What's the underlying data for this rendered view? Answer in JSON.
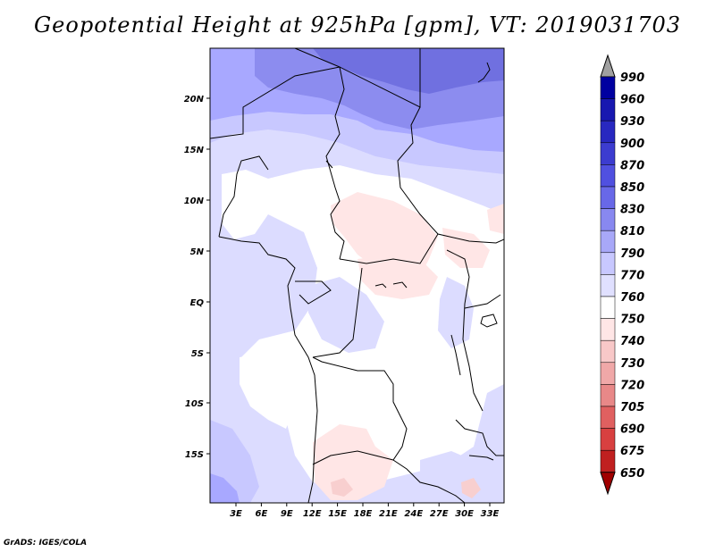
{
  "title": "Geopotential Height at 925hPa [gpm], VT: 2019031703",
  "credit": "GrADS: IGES/COLA",
  "colors": {
    "c_white": "#ffffff",
    "c_770": "#dcdcff",
    "c_790": "#c8c8ff",
    "c_810": "#a8a8ff",
    "c_830": "#8c8cef",
    "c_850": "#7070e0",
    "c_760_pink": "#ffe6e6"
  },
  "map": {
    "lat_labels": [
      "20N",
      "15N",
      "10N",
      "5N",
      "EQ",
      "5S",
      "10S",
      "15S"
    ],
    "lon_labels": [
      "3E",
      "6E",
      "9E",
      "12E",
      "15E",
      "18E",
      "21E",
      "24E",
      "27E",
      "30E",
      "33E"
    ]
  },
  "colorbar": {
    "levels": [
      "990",
      "960",
      "930",
      "900",
      "870",
      "850",
      "830",
      "810",
      "790",
      "770",
      "760",
      "750",
      "740",
      "730",
      "720",
      "705",
      "690",
      "675",
      "650"
    ],
    "colors": [
      "#0000a0",
      "#1818b0",
      "#2828c0",
      "#3c3cd0",
      "#5050e0",
      "#6868e8",
      "#8888f0",
      "#a8a8f8",
      "#c8c8ff",
      "#e0e0ff",
      "#ffffff",
      "#ffe6e6",
      "#f8c8c8",
      "#f0a8a8",
      "#e88888",
      "#e06060",
      "#d84040",
      "#c02020",
      "#a00000"
    ],
    "top_arrow_color": "#a0a0a0",
    "bottom_arrow_color": "#a00000"
  }
}
